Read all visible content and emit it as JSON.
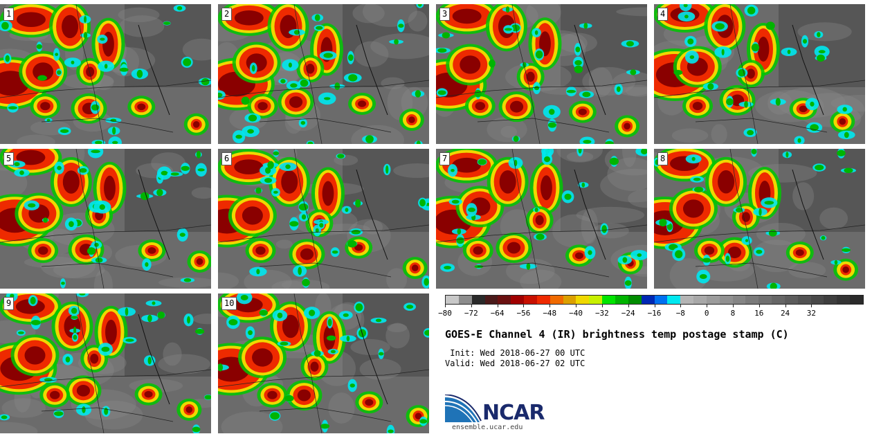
{
  "stamps": [
    {
      "label": "1"
    },
    {
      "label": "2"
    },
    {
      "label": "3"
    },
    {
      "label": "4"
    },
    {
      "label": "5"
    },
    {
      "label": "6"
    },
    {
      "label": "7"
    },
    {
      "label": "8"
    },
    {
      "label": "9"
    },
    {
      "label": "10"
    }
  ],
  "colorbar": {
    "colors": [
      "#c8c8c8",
      "#8c8c8c",
      "#2a2a2a",
      "#4a1a1a",
      "#6a1010",
      "#a00000",
      "#c81000",
      "#ee2a00",
      "#f06a00",
      "#dca000",
      "#f0d800",
      "#c8f000",
      "#00e400",
      "#00b400",
      "#008c00",
      "#0028b4",
      "#0070f0",
      "#00e8f0",
      "#b4b4b4",
      "#a8a8a8",
      "#9c9c9c",
      "#909090",
      "#858585",
      "#7a7a7a",
      "#707070",
      "#666666",
      "#5c5c5c",
      "#525252",
      "#484848",
      "#3e3e3e",
      "#343434",
      "#2a2a2a"
    ],
    "min": -80,
    "max": 48,
    "ticks": [
      "−80",
      "−72",
      "−64",
      "−56",
      "−48",
      "−40",
      "−32",
      "−24",
      "−16",
      "−8",
      "0",
      "8",
      "16",
      "24",
      "32"
    ]
  },
  "title": "GOES-E Channel 4 (IR) brightness temp postage stamp (C)",
  "init_line": " Init: Wed 2018-06-27 00 UTC",
  "valid_line": "Valid: Wed 2018-06-27 02 UTC",
  "logo": {
    "name": "NCAR",
    "url": "ensemble.ucar.edu"
  }
}
